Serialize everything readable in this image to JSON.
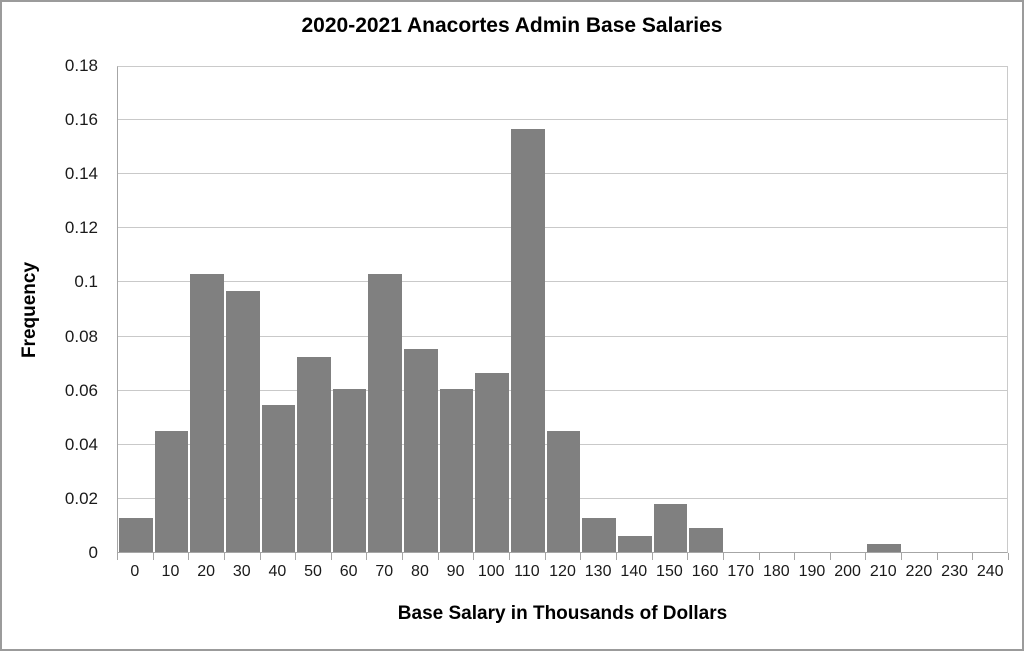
{
  "chart_data": {
    "type": "bar",
    "title": "2020-2021 Anacortes Admin Base Salaries",
    "xlabel": "Base Salary in Thousands of Dollars",
    "ylabel": "Frequency",
    "categories": [
      "0",
      "10",
      "20",
      "30",
      "40",
      "50",
      "60",
      "70",
      "80",
      "90",
      "100",
      "110",
      "120",
      "130",
      "140",
      "150",
      "160",
      "170",
      "180",
      "190",
      "200",
      "210",
      "220",
      "230",
      "240"
    ],
    "values": [
      0.0125,
      0.045,
      0.103,
      0.097,
      0.0545,
      0.0725,
      0.0605,
      0.103,
      0.0755,
      0.0605,
      0.0665,
      0.157,
      0.045,
      0.0125,
      0.006,
      0.018,
      0.009,
      0,
      0,
      0,
      0,
      0.003,
      0,
      0,
      0
    ],
    "ytick_labels": [
      "0",
      "0.02",
      "0.04",
      "0.06",
      "0.08",
      "0.1",
      "0.12",
      "0.14",
      "0.16",
      "0.18"
    ],
    "ylim": [
      0,
      0.18
    ],
    "grid": true,
    "legend": "none",
    "bar_color": "#808080",
    "gridline_color": "#c9c9c9",
    "axis_color": "#a6a6a6",
    "text_color": "#1a1a1a",
    "frame_border_color": "#9b9b9b"
  }
}
